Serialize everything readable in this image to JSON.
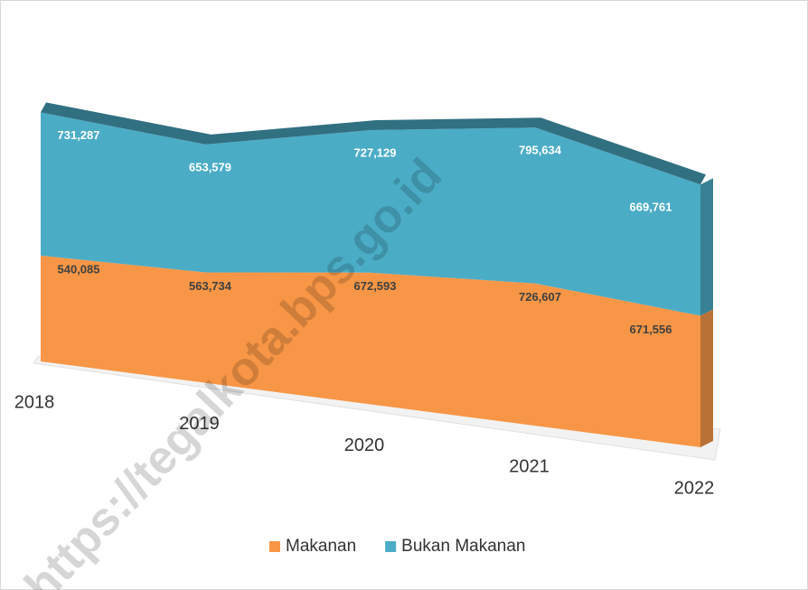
{
  "chart_data": {
    "type": "area",
    "stacked": true,
    "categories": [
      "2018",
      "2019",
      "2020",
      "2021",
      "2022"
    ],
    "series": [
      {
        "name": "Makanan",
        "color": "#f79646",
        "values": [
          540085,
          563734,
          672593,
          726607,
          671556
        ],
        "value_labels": [
          "540,085",
          "563,734",
          "672,593",
          "726,607",
          "671,556"
        ]
      },
      {
        "name": "Bukan Makanan",
        "color": "#4bacc6",
        "values": [
          731287,
          653579,
          727129,
          795634,
          669761
        ],
        "value_labels": [
          "731,287",
          "653,579",
          "727,129",
          "795,634",
          "669,761"
        ]
      }
    ],
    "legend": "bottom",
    "watermark": "https://tegalkota.bps.go.id"
  }
}
